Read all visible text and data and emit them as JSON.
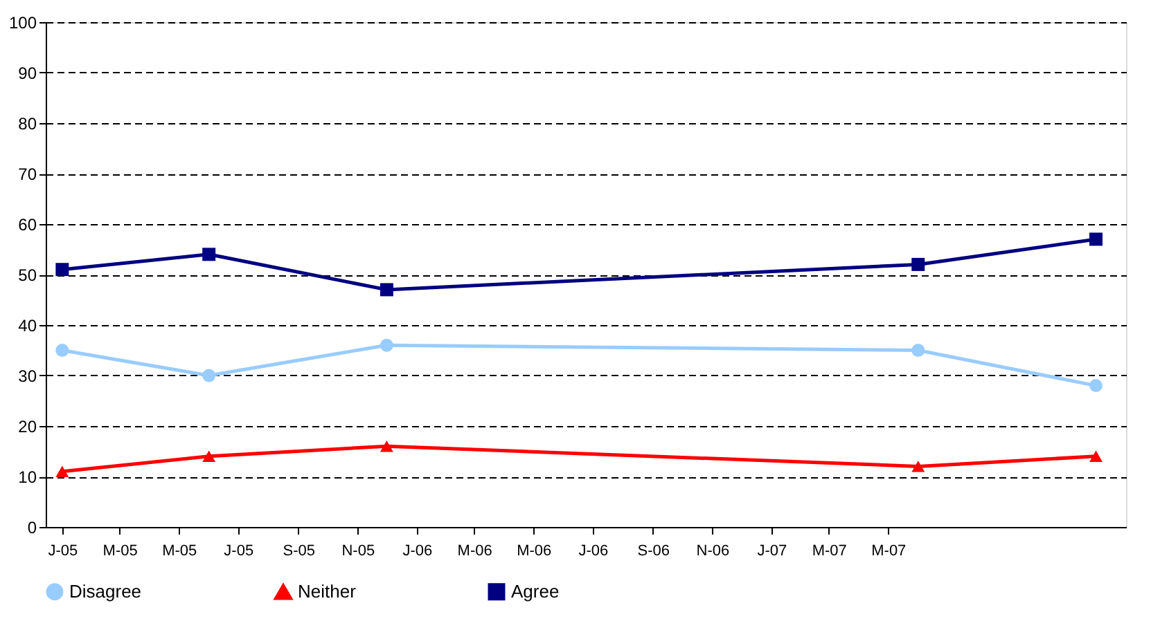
{
  "chart_data": {
    "type": "line",
    "x": [
      "2005-01",
      "2005-06",
      "2005-12",
      "2007-06",
      "2007-12"
    ],
    "series": [
      {
        "name": "Disagree",
        "color": "#99ccff",
        "marker": "circle",
        "values": [
          35,
          30,
          36,
          35,
          28
        ]
      },
      {
        "name": "Neither",
        "color": "#ff0000",
        "marker": "triangle",
        "values": [
          11,
          14,
          16,
          12,
          14
        ]
      },
      {
        "name": "Agree",
        "color": "#000080",
        "marker": "square",
        "values": [
          51,
          54,
          47,
          52,
          57
        ]
      }
    ],
    "xlim": [
      "2004-12-15",
      "2008-01-01"
    ],
    "xticks": [
      {
        "value": "2005-01",
        "label": "J-05"
      },
      {
        "value": "2005-03",
        "label": "M-05"
      },
      {
        "value": "2005-05",
        "label": "M-05"
      },
      {
        "value": "2005-07",
        "label": "J-05"
      },
      {
        "value": "2005-09",
        "label": "S-05"
      },
      {
        "value": "2005-11",
        "label": "N-05"
      },
      {
        "value": "2006-01",
        "label": "J-06"
      },
      {
        "value": "2006-03",
        "label": "M-06"
      },
      {
        "value": "2006-05",
        "label": "M-06"
      },
      {
        "value": "2006-07",
        "label": "J-06"
      },
      {
        "value": "2006-09",
        "label": "S-06"
      },
      {
        "value": "2006-11",
        "label": "N-06"
      },
      {
        "value": "2007-01",
        "label": "J-07"
      },
      {
        "value": "2007-03",
        "label": "M-07"
      },
      {
        "value": "2007-05",
        "label": "M-07"
      }
    ],
    "ylim": [
      0,
      100
    ],
    "yticks": [
      0,
      10,
      20,
      30,
      40,
      50,
      60,
      70,
      80,
      90,
      100
    ],
    "grid": "y",
    "line_style": "solid",
    "legend": "bottom"
  }
}
